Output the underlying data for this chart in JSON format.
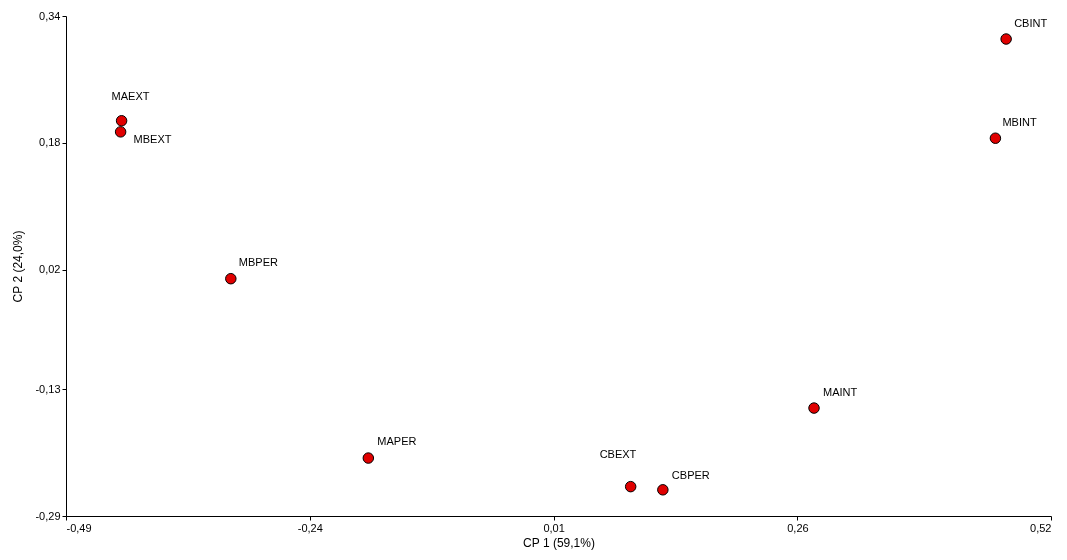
{
  "chart_data": {
    "type": "scatter",
    "xlabel": "CP 1 (59,1%)",
    "ylabel": "CP 2 (24,0%)",
    "x": [
      -0.433,
      -0.434,
      -0.321,
      -0.18,
      0.089,
      0.122,
      0.277,
      0.463,
      0.474
    ],
    "series": [
      {
        "color": "#e00000",
        "values": [
          0.208,
          0.194,
          0.009,
          -0.217,
          -0.253,
          -0.257,
          -0.154,
          0.186,
          0.311
        ]
      }
    ],
    "annotations": [
      {
        "text": "MAEXT",
        "x": -0.433,
        "y": 0.208
      },
      {
        "text": "MBEXT",
        "x": -0.434,
        "y": 0.194
      },
      {
        "text": "MBPER",
        "x": -0.321,
        "y": 0.009
      },
      {
        "text": "MAPER",
        "x": -0.18,
        "y": -0.217
      },
      {
        "text": "CBEXT",
        "x": 0.089,
        "y": -0.253
      },
      {
        "text": "CBPER",
        "x": 0.122,
        "y": -0.257
      },
      {
        "text": "MAINT",
        "x": 0.277,
        "y": -0.154
      },
      {
        "text": "MBINT",
        "x": 0.463,
        "y": 0.186
      },
      {
        "text": "CBINT",
        "x": 0.474,
        "y": 0.311
      }
    ],
    "xlim": [
      -0.49,
      0.52
    ],
    "xticks": [
      {
        "value": -0.49,
        "label": "-0,49"
      },
      {
        "value": -0.24,
        "label": "-0,24"
      },
      {
        "value": 0.01,
        "label": "0,01"
      },
      {
        "value": 0.26,
        "label": "0,26"
      },
      {
        "value": 0.52,
        "label": "0,52"
      }
    ],
    "ylim": [
      -0.29,
      0.34
    ],
    "yticks": [
      {
        "value": -0.29,
        "label": "-0,29"
      },
      {
        "value": -0.13,
        "label": "-0,13"
      },
      {
        "value": 0.02,
        "label": "0,02"
      },
      {
        "value": 0.18,
        "label": "0,18"
      },
      {
        "value": 0.34,
        "label": "0,34"
      }
    ],
    "grid": false,
    "marker": "circle"
  }
}
